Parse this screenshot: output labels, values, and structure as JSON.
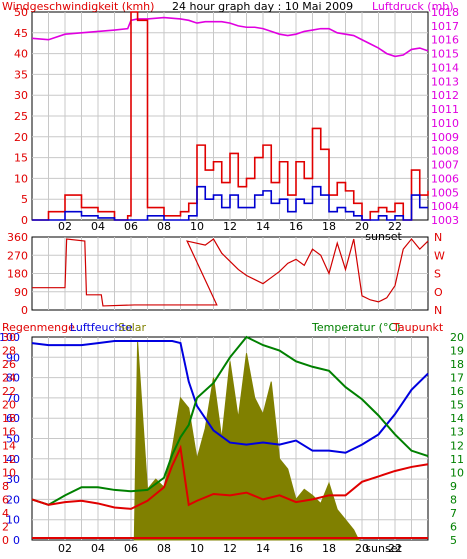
{
  "chart_data": [
    {
      "type": "line",
      "panel": "wind-pressure",
      "title": "24 hour graph day : 10 Mai 2009",
      "left_title": "Windgeschwindigkeit (kmh)",
      "right_title": "Luftdruck (mb)",
      "ylim": [
        0,
        50
      ],
      "yticks_left": [
        "0",
        "5",
        "10",
        "15",
        "20",
        "25",
        "30",
        "35",
        "40",
        "45",
        "50"
      ],
      "y2lim": [
        1003,
        1018
      ],
      "yticks_right": [
        "1003",
        "1004",
        "1005",
        "1006",
        "1007",
        "1008",
        "1009",
        "1010",
        "1011",
        "1012",
        "1013",
        "1014",
        "1015",
        "1016",
        "1017",
        "1018"
      ],
      "x_range_hours": [
        0,
        24
      ],
      "xticks": [
        "02",
        "04",
        "06",
        "08",
        "10",
        "12",
        "14",
        "16",
        "18",
        "20",
        "22",
        "sunset"
      ],
      "x_hours": [
        0,
        1,
        2,
        3,
        4,
        5,
        5.8,
        6,
        6.4,
        7,
        8,
        9,
        9.5,
        10,
        10.5,
        11,
        11.5,
        12,
        12.5,
        13,
        13.5,
        14,
        14.5,
        15,
        15.5,
        16,
        16.5,
        17,
        17.5,
        18,
        18.5,
        19,
        19.5,
        20,
        20.5,
        21,
        21.5,
        22,
        22.5,
        23,
        23.5,
        24
      ],
      "series": [
        {
          "name": "Luftdruck",
          "color": "#e000e0",
          "axis": "right",
          "values": [
            1016.1,
            1016.0,
            1016.4,
            1016.5,
            1016.6,
            1016.7,
            1016.8,
            1017.4,
            1017.5,
            1017.5,
            1017.6,
            1017.5,
            1017.4,
            1017.2,
            1017.3,
            1017.3,
            1017.3,
            1017.2,
            1017.0,
            1016.9,
            1016.9,
            1016.8,
            1016.6,
            1016.4,
            1016.3,
            1016.4,
            1016.6,
            1016.7,
            1016.8,
            1016.8,
            1016.5,
            1016.4,
            1016.3,
            1016.0,
            1015.7,
            1015.4,
            1015.0,
            1014.8,
            1014.9,
            1015.3,
            1015.4,
            1015.2
          ]
        },
        {
          "name": "Böen",
          "color": "#e00000",
          "axis": "left",
          "values": [
            0,
            2,
            6,
            3,
            2,
            0,
            1,
            50,
            48,
            3,
            1,
            2,
            4,
            18,
            12,
            14,
            9,
            16,
            8,
            10,
            15,
            18,
            9,
            14,
            6,
            14,
            10,
            22,
            17,
            6,
            9,
            7,
            4,
            0,
            2,
            3,
            2,
            4,
            0,
            12,
            6,
            7
          ]
        },
        {
          "name": "Windgeschwindigkeit",
          "color": "#0000d0",
          "axis": "left",
          "values": [
            0,
            0,
            2,
            1,
            0.5,
            0,
            0,
            0,
            0,
            1,
            0,
            0,
            1,
            8,
            5,
            6,
            3,
            6,
            3,
            3,
            6,
            7,
            4,
            5,
            2,
            5,
            4,
            8,
            6,
            2,
            3,
            2,
            1,
            0,
            0,
            1,
            0,
            1,
            0,
            6,
            3,
            3
          ]
        }
      ]
    },
    {
      "type": "line",
      "panel": "wind-direction",
      "ylim": [
        0,
        360
      ],
      "yticks_left": [
        "0",
        "90",
        "180",
        "270",
        "360"
      ],
      "yticks_right": [
        "N",
        "O",
        "S",
        "W",
        "N"
      ],
      "series": [
        {
          "name": "Windrichtung",
          "color": "#d00000",
          "x_hours": [
            0,
            2,
            2.1,
            3.2,
            3.3,
            4.2,
            4.3,
            6.2,
            6.4,
            11.1,
            11.2,
            9.4,
            10.5,
            11,
            11.5,
            12,
            12.5,
            13,
            13.5,
            14,
            14.5,
            15,
            15.5,
            16,
            16.5,
            17,
            17.5,
            18,
            18.5,
            19,
            19.5,
            20,
            20.5,
            21,
            21.5,
            22,
            22.5,
            23,
            23.5,
            24
          ],
          "values": [
            110,
            110,
            350,
            340,
            75,
            75,
            20,
            25,
            25,
            25,
            25,
            340,
            320,
            350,
            280,
            240,
            200,
            170,
            150,
            130,
            160,
            190,
            230,
            250,
            220,
            300,
            270,
            180,
            330,
            200,
            350,
            70,
            50,
            40,
            60,
            120,
            300,
            350,
            300,
            340
          ]
        }
      ]
    },
    {
      "type": "area",
      "panel": "rain-humidity-temp",
      "left_titles": [
        "Regenmenge",
        "Luftfeuchte",
        "Solar"
      ],
      "right_titles": [
        "Temperatur (°C)",
        "Taupunkt"
      ],
      "yticks_humidity": [
        "0",
        "10",
        "20",
        "30",
        "40",
        "50",
        "60",
        "70",
        "80",
        "90",
        "100"
      ],
      "yticks_rain": [
        "0",
        "2",
        "4",
        "6",
        "8",
        "10",
        "12",
        "14",
        "16",
        "18",
        "20",
        "22",
        "24",
        "26",
        "28",
        "30"
      ],
      "yticks_temp": [
        "5",
        "6",
        "7",
        "8",
        "9",
        "10",
        "11",
        "12",
        "13",
        "14",
        "15",
        "16",
        "17",
        "18",
        "19",
        "20"
      ],
      "humidity_lim": [
        0,
        100
      ],
      "temp_lim": [
        5,
        20
      ],
      "x_hours": [
        0,
        1,
        2,
        3,
        4,
        5,
        6,
        7,
        8,
        8.5,
        9,
        9.5,
        10,
        11,
        12,
        13,
        14,
        15,
        16,
        17,
        18,
        19,
        20,
        21,
        22,
        23,
        24
      ],
      "series": [
        {
          "name": "Luftfeuchte",
          "color": "#0000e0",
          "axis": "humidity",
          "values": [
            97,
            96,
            96,
            96,
            97,
            98,
            98,
            98,
            98,
            98,
            97,
            78,
            66,
            54,
            48,
            47,
            48,
            47,
            49,
            44,
            44,
            43,
            47,
            52,
            62,
            74,
            82
          ]
        },
        {
          "name": "Temperatur",
          "color": "#008000",
          "axis": "temp",
          "values": [
            8.0,
            7.6,
            8.3,
            8.9,
            8.9,
            8.7,
            8.6,
            8.7,
            9.6,
            11.3,
            12.6,
            13.5,
            15.5,
            16.6,
            18.5,
            20.0,
            19.4,
            19.0,
            18.2,
            17.8,
            17.5,
            16.3,
            15.4,
            14.2,
            12.8,
            11.6,
            11.2
          ]
        },
        {
          "name": "Taupunkt",
          "color": "#e00000",
          "axis": "temp",
          "values": [
            8.0,
            7.6,
            7.8,
            7.9,
            7.7,
            7.4,
            7.3,
            7.9,
            8.9,
            10.5,
            11.8,
            7.6,
            7.9,
            8.4,
            8.3,
            8.5,
            8.0,
            8.3,
            7.8,
            8.0,
            8.3,
            8.3,
            9.3,
            9.7,
            10.1,
            10.4,
            10.6
          ]
        },
        {
          "name": "Solar",
          "color": "#808000",
          "axis": "humidity",
          "x_hours": [
            6.2,
            6.4,
            7,
            7.5,
            8,
            8.5,
            9,
            9.5,
            10,
            10.5,
            11,
            11.5,
            12,
            12.5,
            13,
            13.5,
            14,
            14.5,
            15,
            15.5,
            16,
            16.5,
            17,
            17.5,
            18,
            18.5,
            19,
            19.5,
            19.8
          ],
          "values": [
            0,
            98,
            25,
            30,
            26,
            45,
            70,
            65,
            40,
            55,
            80,
            50,
            88,
            60,
            92,
            70,
            62,
            78,
            40,
            35,
            20,
            25,
            22,
            18,
            28,
            15,
            10,
            5,
            0
          ]
        },
        {
          "name": "Regenmenge",
          "color": "#e00000",
          "axis": "humidity",
          "values": [
            1,
            1,
            1,
            1,
            1,
            1,
            1,
            1,
            1,
            1,
            1,
            1,
            1,
            1,
            1,
            1,
            1,
            1,
            1,
            1,
            1,
            1,
            1,
            1,
            1,
            1,
            1
          ]
        }
      ]
    }
  ]
}
